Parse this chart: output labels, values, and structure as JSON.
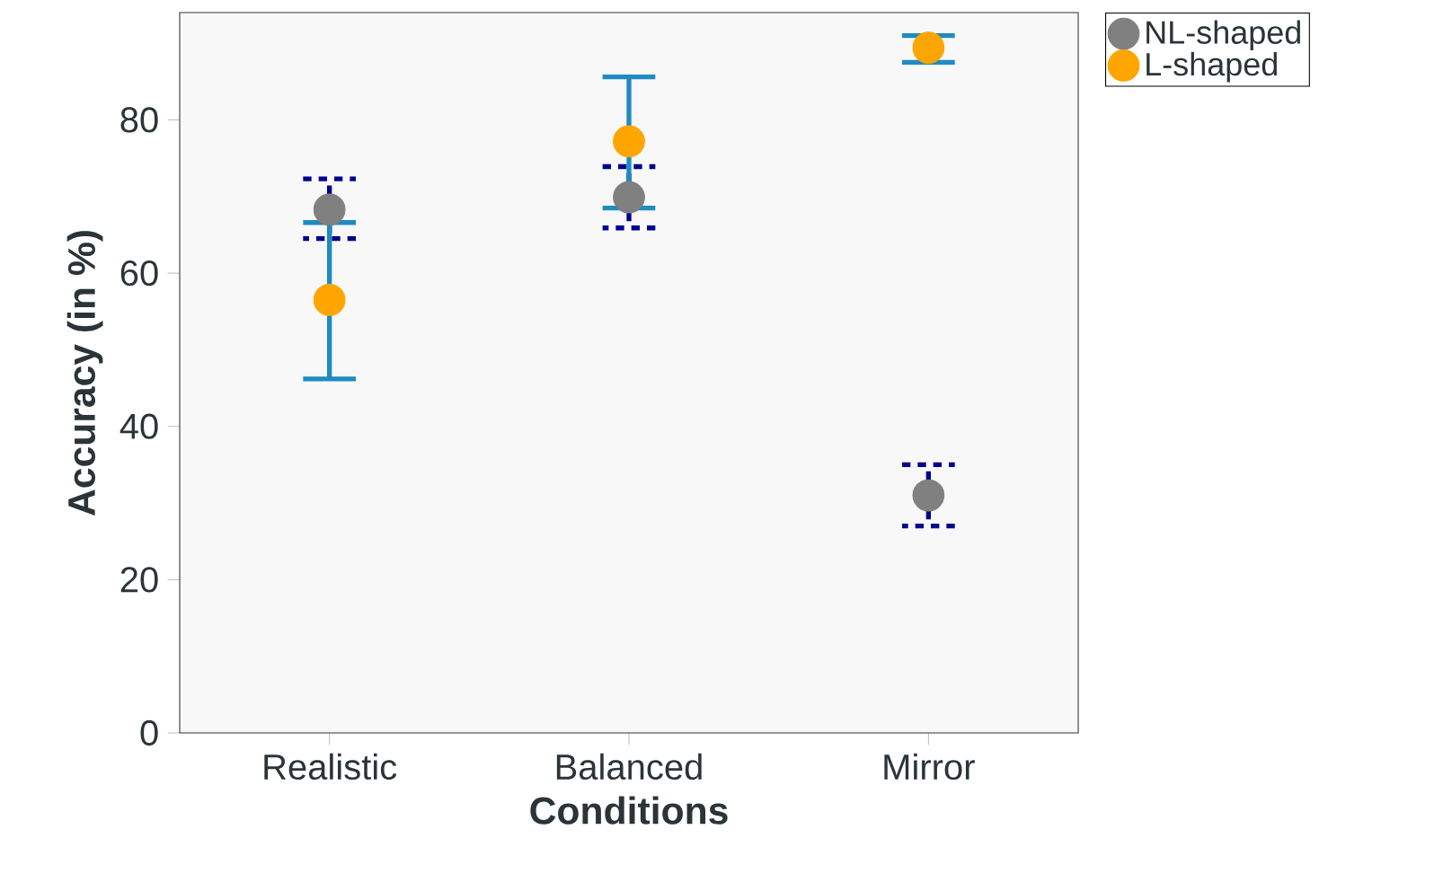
{
  "chart_data": {
    "type": "scatter",
    "xlabel": "Conditions",
    "ylabel": "Accuracy (in %)",
    "categories": [
      "Realistic",
      "Balanced",
      "Mirror"
    ],
    "series": [
      {
        "name": "NL-shaped",
        "color": "#808080",
        "values": [
          68.3,
          69.9,
          31.0
        ],
        "errors": [
          [
            64.5,
            72.3
          ],
          [
            65.9,
            73.9
          ],
          [
            27.0,
            35.0
          ]
        ]
      },
      {
        "name": "L-shaped",
        "color": "#ffa500",
        "values": [
          56.5,
          77.2,
          89.4
        ],
        "errors": [
          [
            46.2,
            66.6
          ],
          [
            68.5,
            85.6
          ],
          [
            87.5,
            91.0
          ]
        ]
      }
    ],
    "ylim": [
      0,
      94
    ],
    "yticks": [
      0,
      20,
      40,
      60,
      80
    ],
    "grid": false,
    "legend": "top right"
  }
}
